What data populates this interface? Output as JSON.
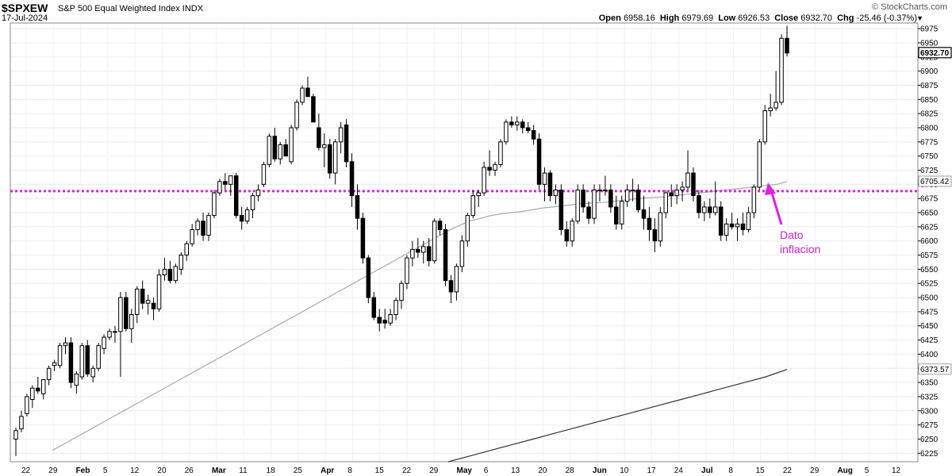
{
  "header": {
    "symbol": "$SPXEW",
    "description": "S&P 500 Equal Weighted Index",
    "exchange": "INDX",
    "date": "17-Jul-2024",
    "brand": "© StockCharts.com",
    "open_label": "Open",
    "open": "6958.16",
    "high_label": "High",
    "high": "6979.69",
    "low_label": "Low",
    "low": "6926.53",
    "close_label": "Close",
    "close": "6932.70",
    "chg_label": "Chg",
    "chg": "-25.46 (-0.37%)",
    "caret_icon": "triangle-down-icon"
  },
  "chart_data": {
    "type": "candlestick",
    "ylim": [
      6210,
      6985
    ],
    "y_ticks": [
      6225,
      6250,
      6275,
      6300,
      6325,
      6350,
      6375,
      6400,
      6425,
      6450,
      6475,
      6500,
      6525,
      6550,
      6575,
      6600,
      6625,
      6650,
      6675,
      6700,
      6725,
      6750,
      6775,
      6800,
      6825,
      6850,
      6875,
      6900,
      6925,
      6950,
      6975
    ],
    "x_labels": [
      "22",
      "29",
      "Feb",
      "5",
      "12",
      "20",
      "26",
      "Mar",
      "11",
      "18",
      "25",
      "Apr",
      "8",
      "15",
      "22",
      "29",
      "May",
      "6",
      "13",
      "20",
      "28",
      "Jun",
      "10",
      "17",
      "24",
      "Jul",
      "8",
      "15",
      "22",
      "29",
      "Aug",
      "5",
      "12"
    ],
    "x_label_bold": [
      "Feb",
      "Mar",
      "Apr",
      "May",
      "Jun",
      "Jul",
      "Aug"
    ],
    "price_tags": [
      {
        "label": "6932.70",
        "value": 6932.7,
        "style": "current"
      },
      {
        "label": "6705.42",
        "value": 6705.42,
        "style": "plain"
      },
      {
        "label": "6373.57",
        "value": 6373.57,
        "style": "plain"
      }
    ],
    "horizontal_line": {
      "value": 6688,
      "color": "#e020e0"
    },
    "annotation": {
      "line1": "Dato",
      "line2": "inflacion",
      "color": "#d21fd2"
    },
    "candles": [
      [
        6250,
        6270,
        6220,
        6265
      ],
      [
        6268,
        6300,
        6262,
        6290
      ],
      [
        6295,
        6330,
        6290,
        6325
      ],
      [
        6320,
        6345,
        6305,
        6340
      ],
      [
        6340,
        6360,
        6330,
        6335
      ],
      [
        6330,
        6355,
        6320,
        6355
      ],
      [
        6355,
        6380,
        6345,
        6375
      ],
      [
        6380,
        6390,
        6370,
        6385
      ],
      [
        6380,
        6420,
        6375,
        6415
      ],
      [
        6415,
        6430,
        6400,
        6420
      ],
      [
        6420,
        6430,
        6340,
        6350
      ],
      [
        6345,
        6370,
        6330,
        6365
      ],
      [
        6360,
        6420,
        6355,
        6415
      ],
      [
        6415,
        6425,
        6360,
        6365
      ],
      [
        6360,
        6380,
        6350,
        6375
      ],
      [
        6375,
        6420,
        6370,
        6415
      ],
      [
        6410,
        6435,
        6400,
        6430
      ],
      [
        6430,
        6445,
        6425,
        6440
      ],
      [
        6440,
        6450,
        6420,
        6440
      ],
      [
        6440,
        6510,
        6360,
        6500
      ],
      [
        6500,
        6510,
        6440,
        6445
      ],
      [
        6445,
        6480,
        6420,
        6470
      ],
      [
        6470,
        6520,
        6455,
        6515
      ],
      [
        6515,
        6530,
        6480,
        6490
      ],
      [
        6490,
        6505,
        6470,
        6495
      ],
      [
        6490,
        6500,
        6460,
        6480
      ],
      [
        6480,
        6550,
        6475,
        6540
      ],
      [
        6540,
        6570,
        6530,
        6550
      ],
      [
        6550,
        6565,
        6525,
        6530
      ],
      [
        6530,
        6560,
        6525,
        6555
      ],
      [
        6550,
        6580,
        6540,
        6575
      ],
      [
        6575,
        6600,
        6565,
        6595
      ],
      [
        6595,
        6630,
        6590,
        6620
      ],
      [
        6620,
        6640,
        6610,
        6635
      ],
      [
        6635,
        6650,
        6600,
        6610
      ],
      [
        6610,
        6650,
        6600,
        6645
      ],
      [
        6645,
        6690,
        6640,
        6685
      ],
      [
        6685,
        6710,
        6680,
        6705
      ],
      [
        6705,
        6720,
        6690,
        6700
      ],
      [
        6700,
        6715,
        6680,
        6715
      ],
      [
        6715,
        6720,
        6640,
        6645
      ],
      [
        6645,
        6660,
        6620,
        6635
      ],
      [
        6635,
        6660,
        6630,
        6655
      ],
      [
        6655,
        6685,
        6640,
        6680
      ],
      [
        6680,
        6700,
        6670,
        6690
      ],
      [
        6700,
        6740,
        6695,
        6735
      ],
      [
        6735,
        6790,
        6730,
        6785
      ],
      [
        6785,
        6800,
        6740,
        6745
      ],
      [
        6745,
        6775,
        6735,
        6770
      ],
      [
        6770,
        6780,
        6750,
        6750
      ],
      [
        6740,
        6805,
        6735,
        6800
      ],
      [
        6800,
        6850,
        6795,
        6845
      ],
      [
        6845,
        6875,
        6840,
        6870
      ],
      [
        6870,
        6890,
        6855,
        6855
      ],
      [
        6855,
        6860,
        6810,
        6810
      ],
      [
        6800,
        6825,
        6760,
        6765
      ],
      [
        6765,
        6790,
        6730,
        6770
      ],
      [
        6770,
        6780,
        6710,
        6720
      ],
      [
        6720,
        6780,
        6700,
        6775
      ],
      [
        6775,
        6810,
        6755,
        6800
      ],
      [
        6805,
        6815,
        6730,
        6740
      ],
      [
        6740,
        6755,
        6660,
        6680
      ],
      [
        6680,
        6700,
        6620,
        6640
      ],
      [
        6640,
        6650,
        6560,
        6570
      ],
      [
        6570,
        6575,
        6490,
        6500
      ],
      [
        6500,
        6510,
        6460,
        6465
      ],
      [
        6465,
        6480,
        6440,
        6455
      ],
      [
        6460,
        6480,
        6445,
        6455
      ],
      [
        6455,
        6480,
        6450,
        6470
      ],
      [
        6470,
        6500,
        6460,
        6495
      ],
      [
        6495,
        6530,
        6480,
        6525
      ],
      [
        6525,
        6575,
        6515,
        6570
      ],
      [
        6570,
        6600,
        6555,
        6585
      ],
      [
        6585,
        6605,
        6570,
        6580
      ],
      [
        6580,
        6600,
        6560,
        6590
      ],
      [
        6590,
        6605,
        6555,
        6565
      ],
      [
        6565,
        6640,
        6560,
        6635
      ],
      [
        6635,
        6640,
        6610,
        6620
      ],
      [
        6620,
        6630,
        6520,
        6530
      ],
      [
        6530,
        6540,
        6490,
        6510
      ],
      [
        6510,
        6560,
        6495,
        6555
      ],
      [
        6555,
        6610,
        6545,
        6600
      ],
      [
        6600,
        6650,
        6590,
        6645
      ],
      [
        6645,
        6690,
        6640,
        6680
      ],
      [
        6680,
        6690,
        6660,
        6685
      ],
      [
        6685,
        6740,
        6680,
        6730
      ],
      [
        6730,
        6760,
        6715,
        6725
      ],
      [
        6725,
        6740,
        6715,
        6735
      ],
      [
        6735,
        6780,
        6730,
        6775
      ],
      [
        6775,
        6815,
        6770,
        6810
      ],
      [
        6810,
        6820,
        6800,
        6805
      ],
      [
        6805,
        6820,
        6795,
        6810
      ],
      [
        6810,
        6815,
        6790,
        6800
      ],
      [
        6800,
        6810,
        6790,
        6795
      ],
      [
        6795,
        6805,
        6770,
        6780
      ],
      [
        6780,
        6790,
        6690,
        6700
      ],
      [
        6700,
        6730,
        6670,
        6720
      ],
      [
        6720,
        6725,
        6670,
        6680
      ],
      [
        6680,
        6700,
        6665,
        6690
      ],
      [
        6690,
        6700,
        6610,
        6620
      ],
      [
        6620,
        6635,
        6590,
        6600
      ],
      [
        6600,
        6640,
        6590,
        6635
      ],
      [
        6635,
        6700,
        6630,
        6690
      ],
      [
        6690,
        6700,
        6650,
        6660
      ],
      [
        6660,
        6670,
        6630,
        6640
      ],
      [
        6640,
        6700,
        6630,
        6690
      ],
      [
        6690,
        6700,
        6670,
        6690
      ],
      [
        6690,
        6715,
        6680,
        6690
      ],
      [
        6690,
        6700,
        6650,
        6660
      ],
      [
        6660,
        6680,
        6620,
        6630
      ],
      [
        6630,
        6680,
        6620,
        6670
      ],
      [
        6670,
        6700,
        6660,
        6690
      ],
      [
        6690,
        6710,
        6670,
        6690
      ],
      [
        6690,
        6700,
        6650,
        6655
      ],
      [
        6655,
        6680,
        6620,
        6640
      ],
      [
        6640,
        6660,
        6600,
        6620
      ],
      [
        6620,
        6640,
        6580,
        6600
      ],
      [
        6600,
        6660,
        6590,
        6650
      ],
      [
        6650,
        6690,
        6640,
        6685
      ],
      [
        6685,
        6700,
        6660,
        6680
      ],
      [
        6680,
        6700,
        6665,
        6690
      ],
      [
        6690,
        6705,
        6670,
        6695
      ],
      [
        6695,
        6760,
        6690,
        6720
      ],
      [
        6720,
        6730,
        6670,
        6680
      ],
      [
        6680,
        6690,
        6640,
        6650
      ],
      [
        6650,
        6670,
        6635,
        6660
      ],
      [
        6660,
        6675,
        6640,
        6650
      ],
      [
        6650,
        6705,
        6645,
        6660
      ],
      [
        6660,
        6670,
        6600,
        6610
      ],
      [
        6610,
        6640,
        6600,
        6630
      ],
      [
        6630,
        6650,
        6620,
        6625
      ],
      [
        6625,
        6640,
        6600,
        6630
      ],
      [
        6630,
        6650,
        6610,
        6620
      ],
      [
        6620,
        6660,
        6615,
        6650
      ],
      [
        6650,
        6700,
        6640,
        6695
      ],
      [
        6695,
        6780,
        6690,
        6775
      ],
      [
        6775,
        6840,
        6770,
        6830
      ],
      [
        6830,
        6860,
        6820,
        6835
      ],
      [
        6835,
        6900,
        6830,
        6845
      ],
      [
        6845,
        6965,
        6840,
        6958
      ],
      [
        6958,
        6980,
        6926,
        6932
      ]
    ],
    "series": [
      {
        "name": "ma50",
        "values": [
          6230,
          6240,
          6250,
          6260,
          6270,
          6280,
          6290,
          6300,
          6310,
          6320,
          6330,
          6340,
          6350,
          6360,
          6370,
          6380,
          6390,
          6400,
          6410,
          6420,
          6430,
          6440,
          6450,
          6460,
          6470,
          6480,
          6490,
          6500,
          6510,
          6520,
          6530,
          6540,
          6550,
          6560,
          6570,
          6580,
          6590,
          6600,
          6610,
          6620,
          6628,
          6636,
          6640,
          6645,
          6648,
          6650,
          6652,
          6655,
          6658,
          6660,
          6662,
          6664,
          6666,
          6667,
          6668,
          6670,
          6672,
          6674,
          6676,
          6677,
          6678,
          6680,
          6682,
          6684,
          6686,
          6688,
          6690,
          6692,
          6694,
          6696,
          6698,
          6700,
          6705
        ]
      },
      {
        "name": "ma200",
        "values": [
          6210,
          6220,
          6230,
          6240,
          6250,
          6260,
          6270,
          6280,
          6290,
          6300,
          6310,
          6320,
          6330,
          6340,
          6350,
          6360,
          6373
        ]
      }
    ]
  }
}
